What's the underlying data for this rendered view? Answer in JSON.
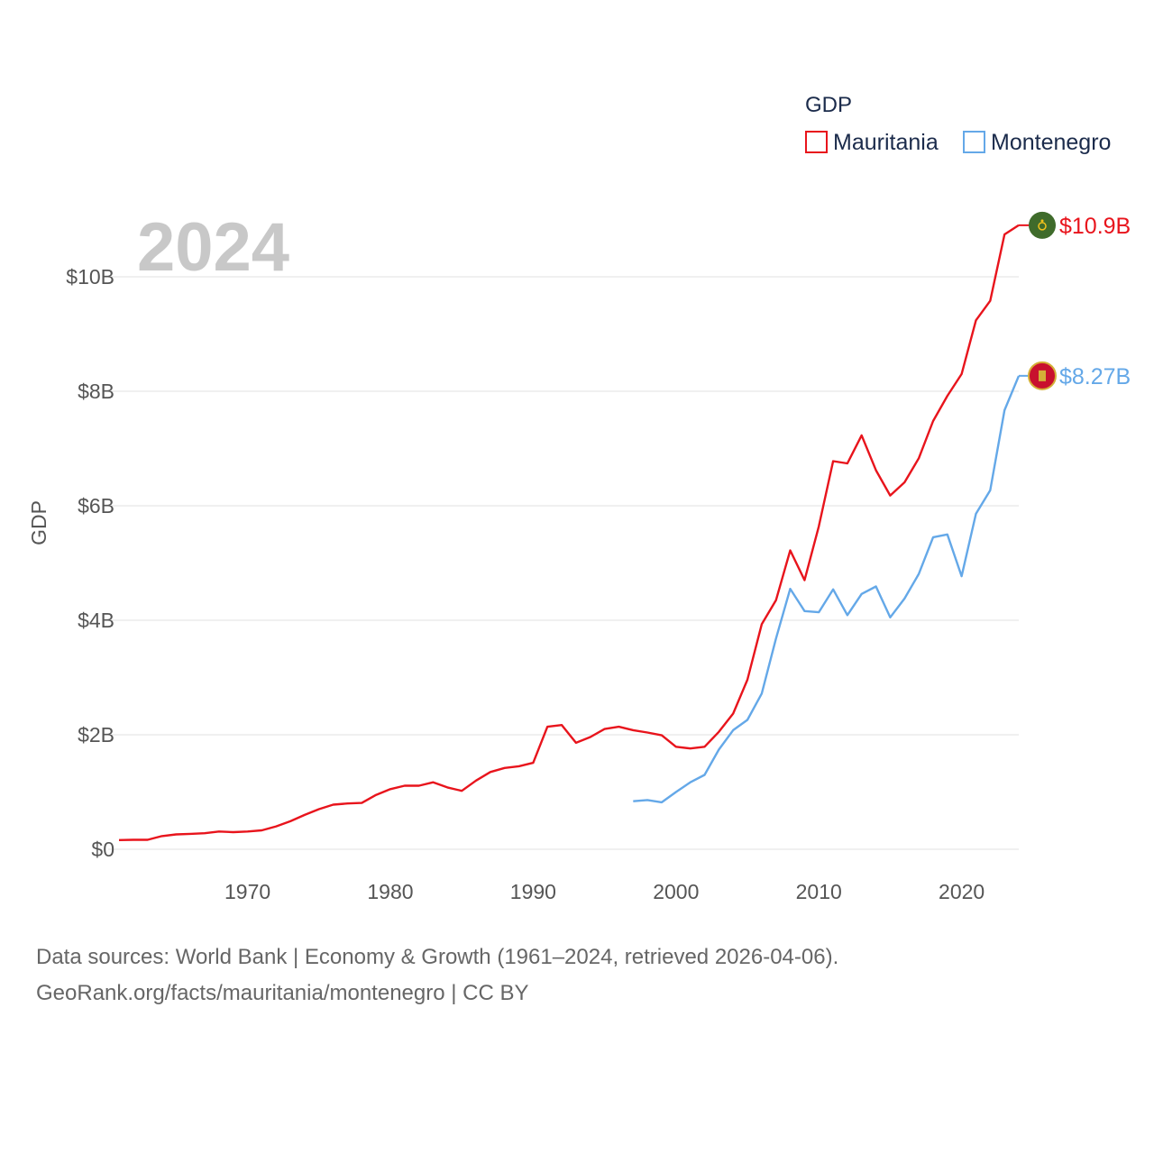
{
  "chart_data": {
    "type": "line",
    "year_label": "2024",
    "ylabel": "GDP",
    "ylim": [
      0,
      11500000000
    ],
    "xlim": [
      1961,
      2024
    ],
    "y_ticks": [
      {
        "value": 0,
        "label": "$0"
      },
      {
        "value": 2000000000,
        "label": "$2B"
      },
      {
        "value": 4000000000,
        "label": "$4B"
      },
      {
        "value": 6000000000,
        "label": "$6B"
      },
      {
        "value": 8000000000,
        "label": "$8B"
      },
      {
        "value": 10000000000,
        "label": "$10B"
      }
    ],
    "x_ticks": [
      {
        "value": 1970,
        "label": "1970"
      },
      {
        "value": 1980,
        "label": "1980"
      },
      {
        "value": 1990,
        "label": "1990"
      },
      {
        "value": 2000,
        "label": "2000"
      },
      {
        "value": 2010,
        "label": "2010"
      },
      {
        "value": 2020,
        "label": "2020"
      }
    ],
    "legend": {
      "title": "GDP",
      "position": "top-right"
    },
    "series": [
      {
        "name": "Mauritania",
        "color": "#e8141c",
        "end_label": "$10.9B",
        "flag_icon": "mauritania-flag-icon",
        "x": [
          1961,
          1962,
          1963,
          1964,
          1965,
          1966,
          1967,
          1968,
          1969,
          1970,
          1971,
          1972,
          1973,
          1974,
          1975,
          1976,
          1977,
          1978,
          1979,
          1980,
          1981,
          1982,
          1983,
          1984,
          1985,
          1986,
          1987,
          1988,
          1989,
          1990,
          1991,
          1992,
          1993,
          1994,
          1995,
          1996,
          1997,
          1998,
          1999,
          2000,
          2001,
          2002,
          2003,
          2004,
          2005,
          2006,
          2007,
          2008,
          2009,
          2010,
          2011,
          2012,
          2013,
          2014,
          2015,
          2016,
          2017,
          2018,
          2019,
          2020,
          2021,
          2022,
          2023,
          2024
        ],
        "values": [
          160000000,
          165000000,
          165000000,
          230000000,
          260000000,
          270000000,
          280000000,
          310000000,
          300000000,
          310000000,
          330000000,
          400000000,
          490000000,
          600000000,
          700000000,
          780000000,
          800000000,
          810000000,
          950000000,
          1050000000,
          1110000000,
          1110000000,
          1170000000,
          1080000000,
          1020000000,
          1200000000,
          1350000000,
          1420000000,
          1450000000,
          1510000000,
          2140000000,
          2170000000,
          1860000000,
          1960000000,
          2100000000,
          2140000000,
          2080000000,
          2040000000,
          1990000000,
          1790000000,
          1760000000,
          1790000000,
          2050000000,
          2370000000,
          2960000000,
          3930000000,
          4350000000,
          5220000000,
          4700000000,
          5640000000,
          6780000000,
          6740000000,
          7230000000,
          6620000000,
          6180000000,
          6410000000,
          6830000000,
          7480000000,
          7920000000,
          8300000000,
          9240000000,
          9580000000,
          10740000000,
          10900000000
        ]
      },
      {
        "name": "Montenegro",
        "color": "#64a8e8",
        "end_label": "$8.27B",
        "flag_icon": "montenegro-flag-icon",
        "x": [
          1997,
          1998,
          1999,
          2000,
          2001,
          2002,
          2003,
          2004,
          2005,
          2006,
          2007,
          2008,
          2009,
          2010,
          2011,
          2012,
          2013,
          2014,
          2015,
          2016,
          2017,
          2018,
          2019,
          2020,
          2021,
          2022,
          2023,
          2024
        ],
        "values": [
          840000000,
          860000000,
          820000000,
          1000000000,
          1170000000,
          1300000000,
          1740000000,
          2080000000,
          2260000000,
          2720000000,
          3680000000,
          4550000000,
          4160000000,
          4140000000,
          4540000000,
          4090000000,
          4460000000,
          4590000000,
          4050000000,
          4380000000,
          4810000000,
          5450000000,
          5500000000,
          4770000000,
          5860000000,
          6270000000,
          7670000000,
          8270000000
        ]
      }
    ]
  },
  "footer": {
    "line1": "Data sources: World Bank | Economy & Growth (1961–2024, retrieved 2026-04-06).",
    "line2": "GeoRank.org/facts/mauritania/montenegro | CC BY"
  }
}
